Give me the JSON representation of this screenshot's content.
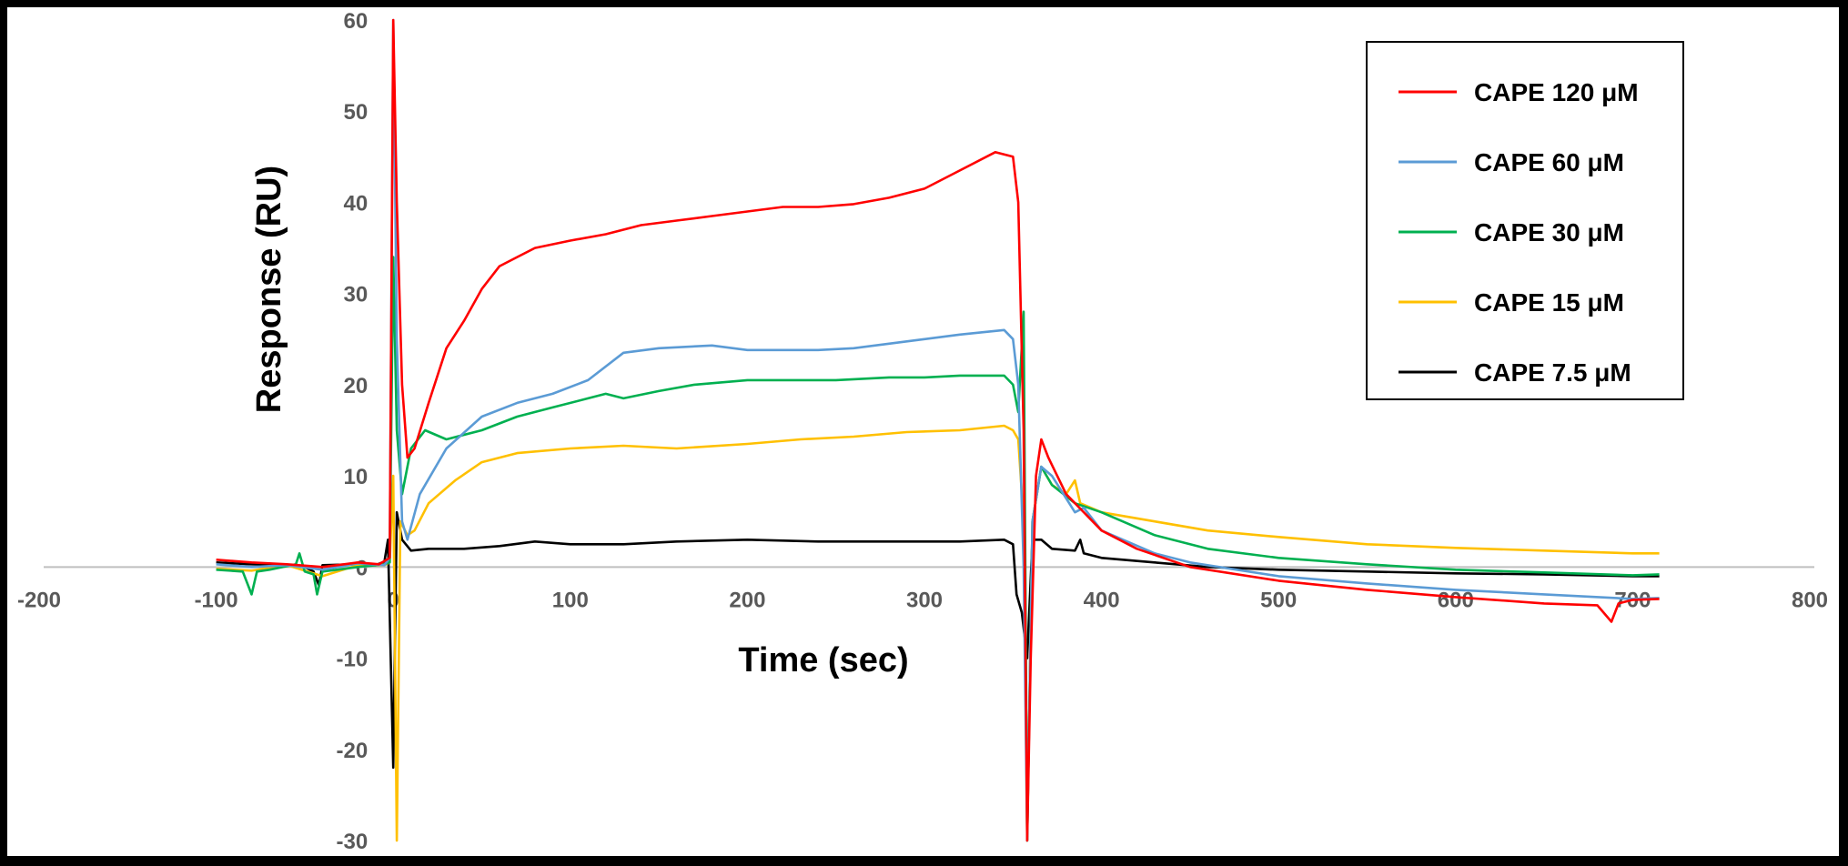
{
  "chart_data": {
    "type": "line",
    "xlabel": "Time (sec)",
    "ylabel": "Response (RU)",
    "xlim": [
      -200,
      800
    ],
    "ylim": [
      -30,
      60
    ],
    "xticks": [
      -200,
      -100,
      0,
      100,
      200,
      300,
      400,
      500,
      600,
      700,
      800
    ],
    "yticks": [
      -30,
      -20,
      -10,
      0,
      10,
      20,
      30,
      40,
      50,
      60
    ],
    "legend_position": "top-right",
    "grid": false,
    "series": [
      {
        "name": "CAPE 120 μM",
        "color": "#ff0000",
        "points": [
          [
            -100,
            0.8
          ],
          [
            -80,
            0.5
          ],
          [
            -60,
            0.3
          ],
          [
            -40,
            0
          ],
          [
            -20,
            0.5
          ],
          [
            -8,
            0.3
          ],
          [
            -2,
            1
          ],
          [
            0,
            60
          ],
          [
            2,
            40
          ],
          [
            5,
            20
          ],
          [
            8,
            12
          ],
          [
            12,
            13
          ],
          [
            20,
            18
          ],
          [
            30,
            24
          ],
          [
            40,
            27
          ],
          [
            50,
            30.5
          ],
          [
            60,
            33
          ],
          [
            70,
            34
          ],
          [
            80,
            35
          ],
          [
            100,
            35.8
          ],
          [
            120,
            36.5
          ],
          [
            140,
            37.5
          ],
          [
            160,
            38
          ],
          [
            180,
            38.5
          ],
          [
            200,
            39
          ],
          [
            220,
            39.5
          ],
          [
            240,
            39.5
          ],
          [
            260,
            39.8
          ],
          [
            280,
            40.5
          ],
          [
            300,
            41.5
          ],
          [
            320,
            43.5
          ],
          [
            340,
            45.5
          ],
          [
            350,
            45
          ],
          [
            353,
            40
          ],
          [
            356,
            15
          ],
          [
            358,
            -30
          ],
          [
            360,
            -10
          ],
          [
            363,
            10
          ],
          [
            366,
            14
          ],
          [
            370,
            12
          ],
          [
            380,
            8
          ],
          [
            400,
            4
          ],
          [
            420,
            2
          ],
          [
            450,
            0
          ],
          [
            500,
            -1.5
          ],
          [
            550,
            -2.5
          ],
          [
            600,
            -3.3
          ],
          [
            650,
            -4
          ],
          [
            680,
            -4.2
          ],
          [
            688,
            -6
          ],
          [
            692,
            -4
          ],
          [
            700,
            -3.6
          ],
          [
            715,
            -3.5
          ]
        ]
      },
      {
        "name": "CAPE 60 μM",
        "color": "#5b9bd5",
        "points": [
          [
            -100,
            0.3
          ],
          [
            -80,
            0
          ],
          [
            -60,
            0.2
          ],
          [
            -40,
            -0.3
          ],
          [
            -20,
            0.4
          ],
          [
            -5,
            0.2
          ],
          [
            -2,
            1
          ],
          [
            0,
            60
          ],
          [
            2,
            25
          ],
          [
            5,
            5
          ],
          [
            8,
            3
          ],
          [
            15,
            8
          ],
          [
            30,
            13
          ],
          [
            50,
            16.5
          ],
          [
            70,
            18
          ],
          [
            90,
            19
          ],
          [
            110,
            20.5
          ],
          [
            130,
            23.5
          ],
          [
            150,
            24
          ],
          [
            180,
            24.3
          ],
          [
            200,
            23.8
          ],
          [
            220,
            23.8
          ],
          [
            240,
            23.8
          ],
          [
            260,
            24
          ],
          [
            280,
            24.5
          ],
          [
            300,
            25
          ],
          [
            320,
            25.5
          ],
          [
            345,
            26
          ],
          [
            350,
            25
          ],
          [
            353,
            20
          ],
          [
            356,
            0
          ],
          [
            358,
            -30
          ],
          [
            361,
            5
          ],
          [
            366,
            11
          ],
          [
            372,
            10
          ],
          [
            385,
            6
          ],
          [
            390,
            6.5
          ],
          [
            400,
            4
          ],
          [
            430,
            1.5
          ],
          [
            450,
            0.5
          ],
          [
            500,
            -1
          ],
          [
            550,
            -1.8
          ],
          [
            600,
            -2.5
          ],
          [
            650,
            -3
          ],
          [
            700,
            -3.5
          ],
          [
            715,
            -3.4
          ]
        ]
      },
      {
        "name": "CAPE 30 μM",
        "color": "#00b050",
        "points": [
          [
            -100,
            -0.3
          ],
          [
            -85,
            -0.5
          ],
          [
            -80,
            -3
          ],
          [
            -77,
            -0.5
          ],
          [
            -70,
            -0.3
          ],
          [
            -55,
            0.3
          ],
          [
            -53,
            1.5
          ],
          [
            -50,
            -0.5
          ],
          [
            -45,
            -0.8
          ],
          [
            -43,
            -3
          ],
          [
            -40,
            -0.5
          ],
          [
            -20,
            0
          ],
          [
            -5,
            0.3
          ],
          [
            -2,
            0.5
          ],
          [
            0,
            34
          ],
          [
            2,
            15
          ],
          [
            5,
            8
          ],
          [
            10,
            13
          ],
          [
            18,
            15
          ],
          [
            30,
            14
          ],
          [
            50,
            15
          ],
          [
            70,
            16.5
          ],
          [
            90,
            17.5
          ],
          [
            110,
            18.5
          ],
          [
            120,
            19
          ],
          [
            130,
            18.5
          ],
          [
            150,
            19.3
          ],
          [
            170,
            20
          ],
          [
            200,
            20.5
          ],
          [
            220,
            20.5
          ],
          [
            250,
            20.5
          ],
          [
            280,
            20.8
          ],
          [
            300,
            20.8
          ],
          [
            320,
            21
          ],
          [
            345,
            21
          ],
          [
            350,
            20
          ],
          [
            353,
            17
          ],
          [
            356,
            28
          ],
          [
            358,
            -30
          ],
          [
            361,
            5
          ],
          [
            366,
            11
          ],
          [
            372,
            9
          ],
          [
            385,
            7
          ],
          [
            400,
            6
          ],
          [
            430,
            3.5
          ],
          [
            460,
            2
          ],
          [
            500,
            1
          ],
          [
            550,
            0.3
          ],
          [
            600,
            -0.3
          ],
          [
            650,
            -0.6
          ],
          [
            700,
            -0.9
          ],
          [
            715,
            -0.8
          ]
        ]
      },
      {
        "name": "CAPE 15 μM",
        "color": "#ffc000",
        "points": [
          [
            -100,
            -0.2
          ],
          [
            -80,
            -0.4
          ],
          [
            -60,
            0.2
          ],
          [
            -40,
            -1
          ],
          [
            -20,
            0.2
          ],
          [
            -5,
            0.2
          ],
          [
            -2,
            0.5
          ],
          [
            0,
            10
          ],
          [
            2,
            -30
          ],
          [
            4,
            5
          ],
          [
            8,
            3.5
          ],
          [
            12,
            4
          ],
          [
            20,
            7
          ],
          [
            35,
            9.5
          ],
          [
            50,
            11.5
          ],
          [
            70,
            12.5
          ],
          [
            100,
            13
          ],
          [
            130,
            13.3
          ],
          [
            160,
            13
          ],
          [
            200,
            13.5
          ],
          [
            230,
            14
          ],
          [
            260,
            14.3
          ],
          [
            290,
            14.8
          ],
          [
            320,
            15
          ],
          [
            345,
            15.5
          ],
          [
            350,
            15
          ],
          [
            353,
            14
          ],
          [
            356,
            5
          ],
          [
            358,
            -30
          ],
          [
            361,
            5
          ],
          [
            366,
            11
          ],
          [
            372,
            9
          ],
          [
            380,
            8
          ],
          [
            385,
            9.5
          ],
          [
            388,
            7
          ],
          [
            400,
            6
          ],
          [
            430,
            5
          ],
          [
            460,
            4
          ],
          [
            500,
            3.3
          ],
          [
            550,
            2.5
          ],
          [
            600,
            2.1
          ],
          [
            650,
            1.8
          ],
          [
            700,
            1.5
          ],
          [
            715,
            1.5
          ]
        ]
      },
      {
        "name": "CAPE 7.5 μM",
        "color": "#000000",
        "points": [
          [
            -100,
            0.5
          ],
          [
            -80,
            0.3
          ],
          [
            -60,
            0.2
          ],
          [
            -50,
            0
          ],
          [
            -45,
            -0.5
          ],
          [
            -42,
            -2
          ],
          [
            -40,
            0.2
          ],
          [
            -20,
            0.3
          ],
          [
            -10,
            0.2
          ],
          [
            -5,
            0.6
          ],
          [
            -3,
            3
          ],
          [
            0,
            -22
          ],
          [
            2,
            6
          ],
          [
            5,
            3
          ],
          [
            10,
            1.8
          ],
          [
            20,
            2
          ],
          [
            40,
            2
          ],
          [
            60,
            2.3
          ],
          [
            80,
            2.8
          ],
          [
            100,
            2.5
          ],
          [
            130,
            2.5
          ],
          [
            160,
            2.8
          ],
          [
            200,
            3
          ],
          [
            240,
            2.8
          ],
          [
            280,
            2.8
          ],
          [
            320,
            2.8
          ],
          [
            345,
            3
          ],
          [
            350,
            2.5
          ],
          [
            352,
            -3
          ],
          [
            355,
            -5
          ],
          [
            358,
            -10
          ],
          [
            361,
            3
          ],
          [
            366,
            3
          ],
          [
            372,
            2
          ],
          [
            385,
            1.8
          ],
          [
            388,
            3
          ],
          [
            390,
            1.5
          ],
          [
            400,
            1
          ],
          [
            430,
            0.5
          ],
          [
            460,
            0
          ],
          [
            500,
            -0.3
          ],
          [
            550,
            -0.5
          ],
          [
            600,
            -0.7
          ],
          [
            650,
            -0.8
          ],
          [
            700,
            -1
          ],
          [
            715,
            -1
          ]
        ]
      }
    ]
  }
}
